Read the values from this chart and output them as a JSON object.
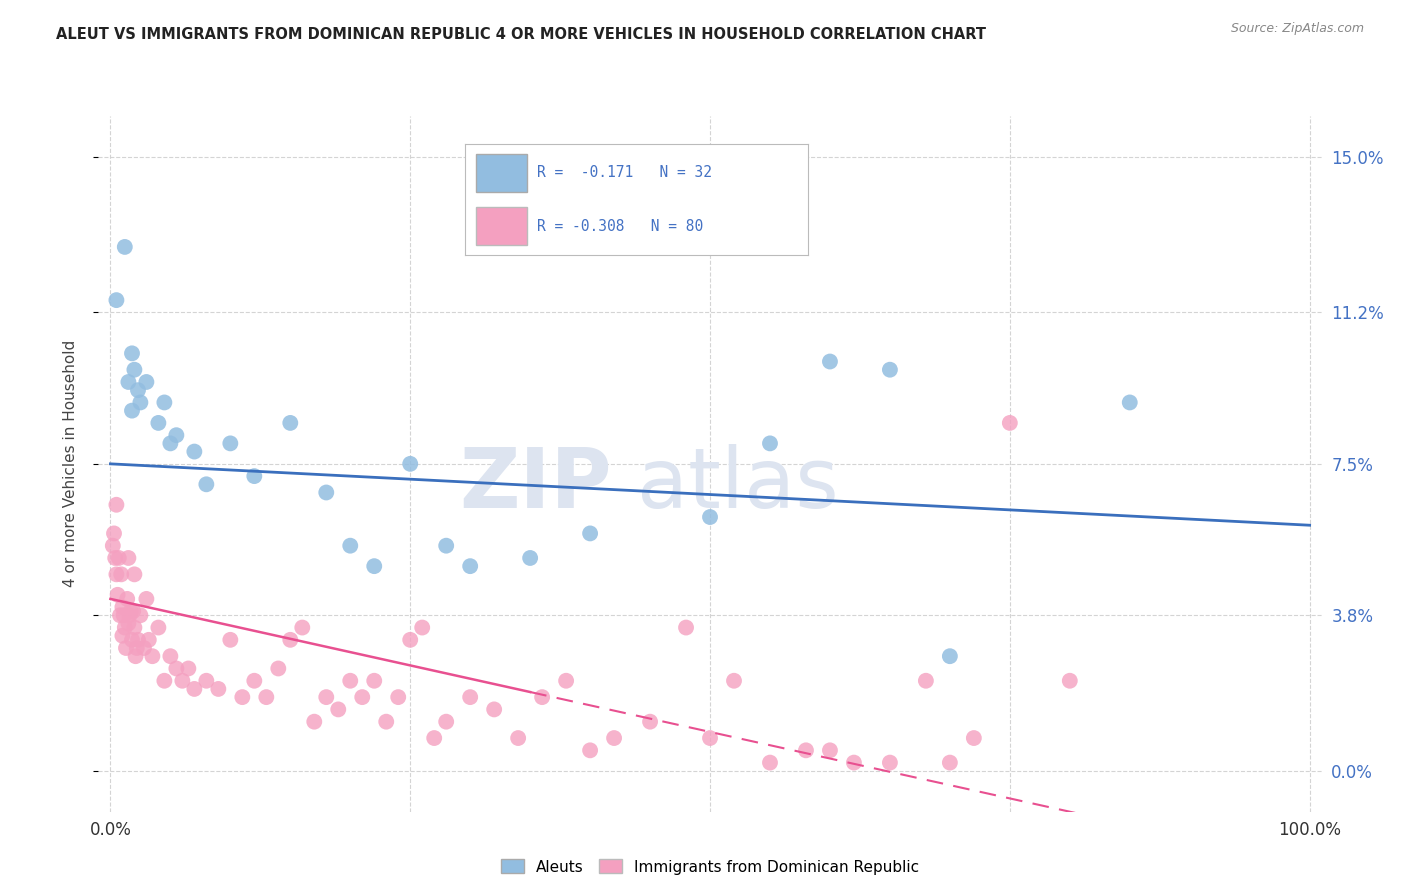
{
  "title": "ALEUT VS IMMIGRANTS FROM DOMINICAN REPUBLIC 4 OR MORE VEHICLES IN HOUSEHOLD CORRELATION CHART",
  "source": "Source: ZipAtlas.com",
  "ylabel": "4 or more Vehicles in Household",
  "yticks": [
    0.0,
    3.8,
    7.5,
    11.2,
    15.0
  ],
  "blue_color": "#92bde0",
  "pink_color": "#f4a0c0",
  "blue_line_color": "#3a6fbd",
  "pink_line_color": "#e85090",
  "legend_text_color": "#4472C4",
  "title_color": "#222222",
  "source_color": "#888888",
  "grid_color": "#d0d0d0",
  "watermark_color": "#dde4f0",
  "aleut_x": [
    0.5,
    1.2,
    1.8,
    2.0,
    2.3,
    1.5,
    1.8,
    2.5,
    3.0,
    4.0,
    4.5,
    5.0,
    5.5,
    7.0,
    8.0,
    10.0,
    12.0,
    15.0,
    18.0,
    20.0,
    22.0,
    25.0,
    28.0,
    30.0,
    35.0,
    40.0,
    50.0,
    55.0,
    60.0,
    65.0,
    70.0,
    85.0
  ],
  "aleut_y": [
    11.5,
    12.8,
    10.2,
    9.8,
    9.3,
    9.5,
    8.8,
    9.0,
    9.5,
    8.5,
    9.0,
    8.0,
    8.2,
    7.8,
    7.0,
    8.0,
    7.2,
    8.5,
    6.8,
    5.5,
    5.0,
    7.5,
    5.5,
    5.0,
    5.2,
    5.8,
    6.2,
    8.0,
    10.0,
    9.8,
    2.8,
    9.0
  ],
  "dr_x": [
    0.2,
    0.3,
    0.4,
    0.5,
    0.5,
    0.6,
    0.7,
    0.8,
    0.9,
    1.0,
    1.0,
    1.1,
    1.2,
    1.3,
    1.4,
    1.5,
    1.5,
    1.6,
    1.7,
    1.8,
    1.9,
    2.0,
    2.0,
    2.1,
    2.2,
    2.3,
    2.5,
    2.8,
    3.0,
    3.2,
    3.5,
    4.0,
    4.5,
    5.0,
    5.5,
    6.0,
    6.5,
    7.0,
    8.0,
    9.0,
    10.0,
    11.0,
    12.0,
    13.0,
    14.0,
    15.0,
    16.0,
    17.0,
    18.0,
    19.0,
    20.0,
    21.0,
    22.0,
    23.0,
    24.0,
    25.0,
    26.0,
    27.0,
    28.0,
    30.0,
    32.0,
    34.0,
    36.0,
    38.0,
    40.0,
    42.0,
    45.0,
    48.0,
    50.0,
    52.0,
    55.0,
    58.0,
    60.0,
    62.0,
    65.0,
    68.0,
    70.0,
    72.0,
    75.0,
    80.0
  ],
  "dr_y": [
    5.5,
    5.8,
    5.2,
    4.8,
    6.5,
    4.3,
    5.2,
    3.8,
    4.8,
    4.0,
    3.3,
    3.8,
    3.5,
    3.0,
    4.2,
    3.6,
    5.2,
    3.8,
    3.9,
    3.2,
    3.9,
    3.5,
    4.8,
    2.8,
    3.0,
    3.2,
    3.8,
    3.0,
    4.2,
    3.2,
    2.8,
    3.5,
    2.2,
    2.8,
    2.5,
    2.2,
    2.5,
    2.0,
    2.2,
    2.0,
    3.2,
    1.8,
    2.2,
    1.8,
    2.5,
    3.2,
    3.5,
    1.2,
    1.8,
    1.5,
    2.2,
    1.8,
    2.2,
    1.2,
    1.8,
    3.2,
    3.5,
    0.8,
    1.2,
    1.8,
    1.5,
    0.8,
    1.8,
    2.2,
    0.5,
    0.8,
    1.2,
    3.5,
    0.8,
    2.2,
    0.2,
    0.5,
    0.5,
    0.2,
    0.2,
    2.2,
    0.2,
    0.8,
    8.5,
    2.2
  ],
  "bg_color": "#ffffff"
}
